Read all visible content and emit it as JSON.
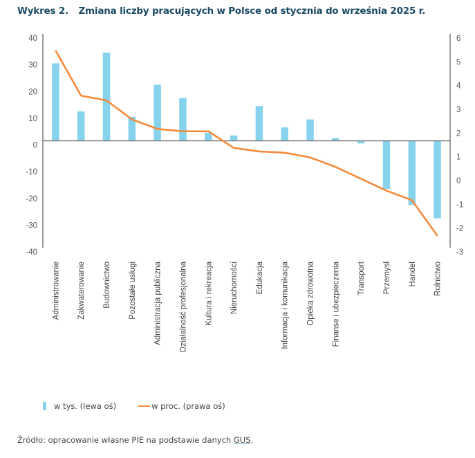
{
  "title": {
    "number": "Wykres 2.",
    "text": "Zmiana liczby pracujących w Polsce od stycznia do września 2025 r."
  },
  "colors": {
    "bars": "#87d3ee",
    "line": "#f58a3c",
    "title": "#1b4a63",
    "axis": "#7a7a7a"
  },
  "chart_data": {
    "type": "bar+line",
    "title": "Zmiana liczby pracujących w Polsce od stycznia do września 2025 r.",
    "categories": [
      "Administrowanie",
      "Zakwaterowanie",
      "Budownictwo",
      "Pozostałe usługi",
      "Administracja publiczna",
      "Działalność profesjonalna",
      "Kultura i rekreacja",
      "Nieruchomości",
      "Edukacja",
      "Informacja i komunikacja",
      "Opieka zdrowotna",
      "Finanse i ubezpieczenia",
      "Transport",
      "Przemysł",
      "Handel",
      "Rolnictwo"
    ],
    "series": [
      {
        "name": "w tys. (lewa oś)",
        "type": "bar",
        "axis": "left",
        "values": [
          29,
          11,
          33,
          9,
          21,
          16,
          3,
          2,
          13,
          5,
          8,
          1,
          -1,
          -18,
          -24,
          -29
        ]
      },
      {
        "name": "w proc. (prawa oś)",
        "type": "line",
        "axis": "right",
        "values": [
          5.3,
          3.4,
          3.2,
          2.4,
          2.0,
          1.9,
          1.9,
          1.2,
          1.05,
          1.0,
          0.8,
          0.4,
          -0.1,
          -0.6,
          -1.0,
          -2.5
        ]
      }
    ],
    "left_axis": {
      "ylim": [
        -40,
        40
      ],
      "ticks": [
        "40",
        "30",
        "20",
        "10",
        "0",
        "-10",
        "-20",
        "-30",
        "-40"
      ],
      "tick_values": [
        40,
        30,
        20,
        10,
        0,
        -10,
        -20,
        -30,
        -40
      ]
    },
    "right_axis": {
      "ylim": [
        -3,
        6
      ],
      "ticks": [
        "6",
        "5",
        "4",
        "3",
        "2",
        "1",
        "0",
        "-1",
        "-2",
        "-3"
      ],
      "tick_values": [
        6,
        5,
        4,
        3,
        2,
        1,
        0,
        -1,
        -2,
        -3
      ]
    },
    "xlabel": "",
    "ylabel": "",
    "grid": false,
    "legend_position": "bottom-left"
  },
  "legend": {
    "bar_label": "w tys. (lewa oś)",
    "line_label": "w proc. (prawa oś)"
  },
  "source": {
    "prefix": "Źródło: opracowanie własne PIE na podstawie danych ",
    "link": "GUS",
    "suffix": "."
  }
}
